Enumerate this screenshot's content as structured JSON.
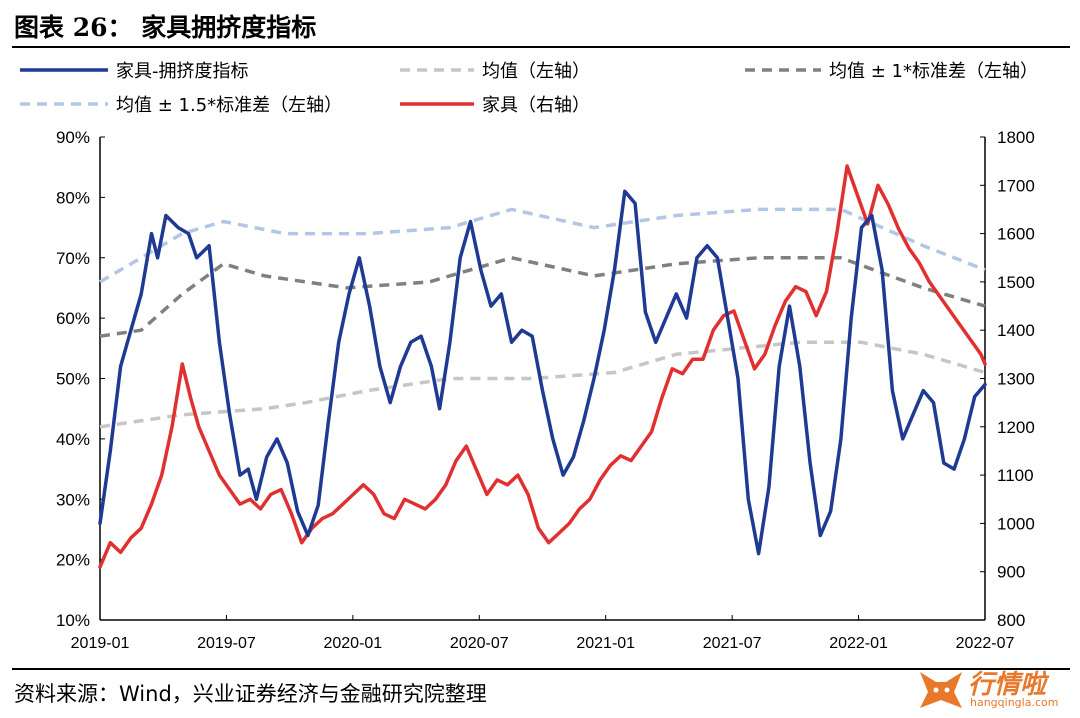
{
  "figure": {
    "title": "图表 26：  家具拥挤度指标",
    "source": "资料来源：Wind，兴业证券经济与金融研究院整理",
    "watermark": {
      "main": "行情啦",
      "sub": "hangqingla.com"
    }
  },
  "colors": {
    "crowding": "#1f3a93",
    "mean": "#c6c6c6",
    "band1": "#808080",
    "band15": "#b4c6e7",
    "furniture": "#e03030"
  },
  "chart_data": {
    "type": "line",
    "title": "",
    "xlabel": "",
    "ylabel": "",
    "x_ticks": [
      "2019-01",
      "2019-07",
      "2020-01",
      "2020-07",
      "2021-01",
      "2021-07",
      "2022-01",
      "2022-07"
    ],
    "x_range": [
      0,
      43
    ],
    "y_left": {
      "ticks": [
        "10%",
        "20%",
        "30%",
        "40%",
        "50%",
        "60%",
        "70%",
        "80%",
        "90%"
      ],
      "range": [
        10,
        90
      ],
      "unit": "%"
    },
    "y_right": {
      "ticks": [
        "800",
        "900",
        "1000",
        "1100",
        "1200",
        "1300",
        "1400",
        "1500",
        "1600",
        "1700",
        "1800"
      ],
      "range": [
        800,
        1800
      ]
    },
    "legend": [
      {
        "key": "crowding",
        "label": "家具-拥挤度指标"
      },
      {
        "key": "mean",
        "label": "均值（左轴）"
      },
      {
        "key": "band1",
        "label": "均值 ± 1*标准差（左轴）"
      },
      {
        "key": "band15",
        "label": "均值 ± 1.5*标准差（左轴）"
      },
      {
        "key": "furniture",
        "label": "家具（右轴）"
      }
    ],
    "series": [
      {
        "key": "crowding",
        "axis": "left",
        "style": "solid",
        "width": 3.5,
        "points": [
          [
            0,
            26
          ],
          [
            0.5,
            38
          ],
          [
            1,
            52
          ],
          [
            2,
            64
          ],
          [
            2.5,
            74
          ],
          [
            2.8,
            70
          ],
          [
            3.2,
            77
          ],
          [
            3.8,
            75
          ],
          [
            4.3,
            74
          ],
          [
            4.7,
            70
          ],
          [
            5.3,
            72
          ],
          [
            5.8,
            56
          ],
          [
            6.3,
            44
          ],
          [
            6.8,
            34
          ],
          [
            7.2,
            35
          ],
          [
            7.6,
            30
          ],
          [
            8.1,
            37
          ],
          [
            8.6,
            40
          ],
          [
            9.1,
            36
          ],
          [
            9.6,
            28
          ],
          [
            10.1,
            24
          ],
          [
            10.6,
            29
          ],
          [
            11.1,
            43
          ],
          [
            11.6,
            56
          ],
          [
            12.1,
            64
          ],
          [
            12.6,
            70
          ],
          [
            13.1,
            62
          ],
          [
            13.6,
            52
          ],
          [
            14.1,
            46
          ],
          [
            14.6,
            52
          ],
          [
            15.1,
            56
          ],
          [
            15.6,
            57
          ],
          [
            16.1,
            52
          ],
          [
            16.5,
            45
          ],
          [
            17,
            56
          ],
          [
            17.5,
            70
          ],
          [
            18,
            76
          ],
          [
            18.5,
            68
          ],
          [
            19,
            62
          ],
          [
            19.5,
            64
          ],
          [
            20,
            56
          ],
          [
            20.5,
            58
          ],
          [
            21,
            57
          ],
          [
            21.5,
            48
          ],
          [
            22,
            40
          ],
          [
            22.5,
            34
          ],
          [
            23,
            37
          ],
          [
            23.5,
            43
          ],
          [
            24,
            50
          ],
          [
            24.5,
            58
          ],
          [
            25,
            68
          ],
          [
            25.5,
            81
          ],
          [
            26,
            79
          ],
          [
            26.5,
            61
          ],
          [
            27,
            56
          ],
          [
            27.5,
            60
          ],
          [
            28,
            64
          ],
          [
            28.5,
            60
          ],
          [
            29,
            70
          ],
          [
            29.5,
            72
          ],
          [
            30,
            70
          ],
          [
            30.5,
            60
          ],
          [
            31,
            50
          ],
          [
            31.5,
            30
          ],
          [
            32,
            21
          ],
          [
            32.5,
            32
          ],
          [
            33,
            52
          ],
          [
            33.5,
            62
          ],
          [
            34,
            52
          ],
          [
            34.5,
            36
          ],
          [
            35,
            24
          ],
          [
            35.5,
            28
          ],
          [
            36,
            40
          ],
          [
            36.5,
            60
          ],
          [
            37,
            75
          ],
          [
            37.5,
            77
          ],
          [
            38,
            68
          ],
          [
            38.5,
            48
          ],
          [
            39,
            40
          ],
          [
            39.5,
            44
          ],
          [
            40,
            48
          ],
          [
            40.5,
            46
          ],
          [
            41,
            36
          ],
          [
            41.5,
            35
          ],
          [
            42,
            40
          ],
          [
            42.5,
            47
          ],
          [
            43,
            49
          ]
        ]
      },
      {
        "key": "mean",
        "axis": "left",
        "style": "dashed",
        "width": 3.5,
        "points": [
          [
            0,
            42
          ],
          [
            4,
            44
          ],
          [
            8,
            45
          ],
          [
            10,
            46
          ],
          [
            13,
            48
          ],
          [
            17,
            50
          ],
          [
            21,
            50
          ],
          [
            25,
            51
          ],
          [
            28,
            54
          ],
          [
            31,
            55
          ],
          [
            34,
            56
          ],
          [
            37,
            56
          ],
          [
            40,
            54
          ],
          [
            43,
            51
          ]
        ]
      },
      {
        "key": "band1",
        "axis": "left",
        "style": "dashed",
        "width": 3.5,
        "points": [
          [
            0,
            57
          ],
          [
            2,
            58
          ],
          [
            4,
            64
          ],
          [
            6,
            69
          ],
          [
            8,
            67
          ],
          [
            12,
            65
          ],
          [
            16,
            66
          ],
          [
            20,
            70
          ],
          [
            24,
            67
          ],
          [
            28,
            69
          ],
          [
            32,
            70
          ],
          [
            36,
            70
          ],
          [
            40,
            65
          ],
          [
            43,
            62
          ]
        ]
      },
      {
        "key": "band15",
        "axis": "left",
        "style": "dashed",
        "width": 3.5,
        "points": [
          [
            0,
            66
          ],
          [
            2,
            70
          ],
          [
            4,
            74
          ],
          [
            6,
            76
          ],
          [
            9,
            74
          ],
          [
            13,
            74
          ],
          [
            17,
            75
          ],
          [
            20,
            78
          ],
          [
            24,
            75
          ],
          [
            28,
            77
          ],
          [
            32,
            78
          ],
          [
            36,
            78
          ],
          [
            40,
            72
          ],
          [
            43,
            68
          ]
        ]
      },
      {
        "key": "furniture",
        "axis": "right",
        "style": "solid",
        "width": 3.5,
        "points": [
          [
            0,
            910
          ],
          [
            0.5,
            960
          ],
          [
            1,
            940
          ],
          [
            1.5,
            970
          ],
          [
            2,
            990
          ],
          [
            2.5,
            1040
          ],
          [
            3,
            1100
          ],
          [
            3.5,
            1200
          ],
          [
            4,
            1330
          ],
          [
            4.4,
            1260
          ],
          [
            4.8,
            1200
          ],
          [
            5.3,
            1150
          ],
          [
            5.8,
            1100
          ],
          [
            6.3,
            1070
          ],
          [
            6.8,
            1040
          ],
          [
            7.3,
            1050
          ],
          [
            7.8,
            1030
          ],
          [
            8.3,
            1060
          ],
          [
            8.8,
            1070
          ],
          [
            9.3,
            1020
          ],
          [
            9.8,
            960
          ],
          [
            10.3,
            990
          ],
          [
            10.8,
            1010
          ],
          [
            11.3,
            1020
          ],
          [
            11.8,
            1040
          ],
          [
            12.3,
            1060
          ],
          [
            12.8,
            1080
          ],
          [
            13.3,
            1060
          ],
          [
            13.8,
            1020
          ],
          [
            14.3,
            1010
          ],
          [
            14.8,
            1050
          ],
          [
            15.3,
            1040
          ],
          [
            15.8,
            1030
          ],
          [
            16.3,
            1050
          ],
          [
            16.8,
            1080
          ],
          [
            17.3,
            1130
          ],
          [
            17.8,
            1160
          ],
          [
            18.3,
            1110
          ],
          [
            18.8,
            1060
          ],
          [
            19.3,
            1090
          ],
          [
            19.8,
            1080
          ],
          [
            20.3,
            1100
          ],
          [
            20.8,
            1060
          ],
          [
            21.3,
            990
          ],
          [
            21.8,
            960
          ],
          [
            22.3,
            980
          ],
          [
            22.8,
            1000
          ],
          [
            23.3,
            1030
          ],
          [
            23.8,
            1050
          ],
          [
            24.3,
            1090
          ],
          [
            24.8,
            1120
          ],
          [
            25.3,
            1140
          ],
          [
            25.8,
            1130
          ],
          [
            26.3,
            1160
          ],
          [
            26.8,
            1190
          ],
          [
            27.3,
            1260
          ],
          [
            27.8,
            1320
          ],
          [
            28.3,
            1310
          ],
          [
            28.8,
            1340
          ],
          [
            29.3,
            1340
          ],
          [
            29.8,
            1400
          ],
          [
            30.3,
            1430
          ],
          [
            30.8,
            1440
          ],
          [
            31.3,
            1380
          ],
          [
            31.8,
            1320
          ],
          [
            32.3,
            1350
          ],
          [
            32.8,
            1410
          ],
          [
            33.3,
            1460
          ],
          [
            33.8,
            1490
          ],
          [
            34.3,
            1480
          ],
          [
            34.8,
            1430
          ],
          [
            35.3,
            1480
          ],
          [
            35.8,
            1600
          ],
          [
            36.3,
            1740
          ],
          [
            36.8,
            1680
          ],
          [
            37.3,
            1620
          ],
          [
            37.8,
            1700
          ],
          [
            38.3,
            1660
          ],
          [
            38.8,
            1610
          ],
          [
            39.3,
            1570
          ],
          [
            39.8,
            1540
          ],
          [
            40.3,
            1500
          ],
          [
            40.8,
            1470
          ],
          [
            41.3,
            1440
          ],
          [
            41.8,
            1410
          ],
          [
            42.3,
            1380
          ],
          [
            42.8,
            1350
          ],
          [
            43,
            1330
          ]
        ]
      }
    ]
  }
}
